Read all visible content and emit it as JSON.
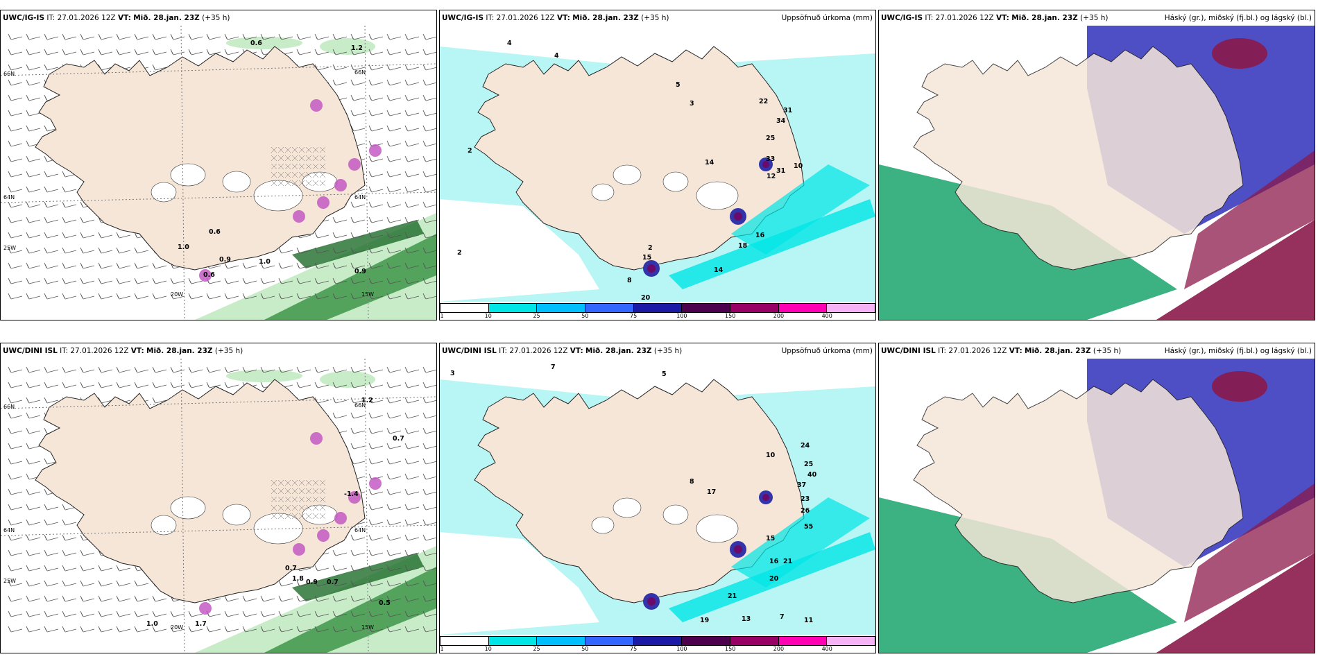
{
  "panels": [
    {
      "model": "UWC/IG-IS",
      "it_label": "IT:",
      "it_value": "27.01.2026 12Z",
      "vt_label": "VT:",
      "vt_value": "Mið. 28.jan. 23Z",
      "lead": "(+35 h)",
      "right_title": "",
      "kind": "wind",
      "labels": [
        "0.6",
        "1.2",
        "0.6",
        "1.0",
        "0.9",
        "1.0",
        "0.9",
        "0.6",
        "20W",
        "15W",
        "66N",
        "64N",
        "25W",
        "66N",
        "64N"
      ]
    },
    {
      "model": "UWC/IG-IS",
      "it_label": "IT:",
      "it_value": "27.01.2026 12Z",
      "vt_label": "VT:",
      "vt_value": "Mið. 28.jan. 23Z",
      "lead": "(+35 h)",
      "right_title": "Uppsöfnuð úrkoma (mm)",
      "kind": "precip",
      "labels": [
        "4",
        "4",
        "2",
        "5",
        "3",
        "22",
        "31",
        "34",
        "25",
        "33",
        "31",
        "14",
        "18",
        "16",
        "14",
        "20",
        "15",
        "8",
        "2",
        "2",
        "12",
        "10"
      ]
    },
    {
      "model": "UWC/IG-IS",
      "it_label": "IT:",
      "it_value": "27.01.2026 12Z",
      "vt_label": "VT:",
      "vt_value": "Mið. 28.jan. 23Z",
      "lead": "(+35 h)",
      "right_title": "Háský (gr.), miðský (fj.bl.) og lágský (bl.)",
      "kind": "cloud",
      "labels": []
    },
    {
      "model": "UWC/DINI ISL",
      "it_label": "IT:",
      "it_value": "27.01.2026 12Z",
      "vt_label": "VT:",
      "vt_value": "Mið. 28.jan. 23Z",
      "lead": "(+35 h)",
      "right_title": "",
      "kind": "wind",
      "labels": [
        "1.2",
        "0.7",
        "-1.4",
        "0.7",
        "0.9",
        "0.7",
        "0.5",
        "1.8",
        "1.0",
        "1.7",
        "20W",
        "15W",
        "66N",
        "64N",
        "25W",
        "66N",
        "64N"
      ]
    },
    {
      "model": "UWC/DINI ISL",
      "it_label": "IT:",
      "it_value": "27.01.2026 12Z",
      "vt_label": "VT:",
      "vt_value": "Mið. 28.jan. 23Z",
      "lead": "(+35 h)",
      "right_title": "Uppsöfnuð úrkoma (mm)",
      "kind": "precip",
      "labels": [
        "3",
        "7",
        "5",
        "10",
        "24",
        "25",
        "40",
        "37",
        "23",
        "26",
        "55",
        "15",
        "16",
        "21",
        "20",
        "21",
        "13",
        "11",
        "19",
        "7",
        "17",
        "8"
      ]
    },
    {
      "model": "UWC/DINI ISL",
      "it_label": "IT:",
      "it_value": "27.01.2026 12Z",
      "vt_label": "VT:",
      "vt_value": "Mið. 28.jan. 23Z",
      "lead": "(+35 h)",
      "right_title": "Háský (gr.), miðský (fj.bl.) og lágský (bl.)",
      "kind": "cloud",
      "labels": []
    }
  ],
  "precip_scale": {
    "ticks": [
      "1",
      "10",
      "25",
      "50",
      "75",
      "100",
      "150",
      "200",
      "400"
    ],
    "colors": [
      "#ffffff",
      "#00e5e5",
      "#00bfff",
      "#3366ff",
      "#1a1aa6",
      "#4d004d",
      "#990066",
      "#ff00b3",
      "#f5b3f5"
    ]
  },
  "colors": {
    "land": "#f5e6d8",
    "sea_wind": "#ffffff",
    "sea_precip": "#b8f5f5",
    "green_light": "#c8ecc8",
    "green_dark": "#2e8b3a",
    "cloud_high": "#3b3bbf",
    "cloud_mid": "#8b1a4a",
    "cloud_low": "#1aa36b"
  }
}
